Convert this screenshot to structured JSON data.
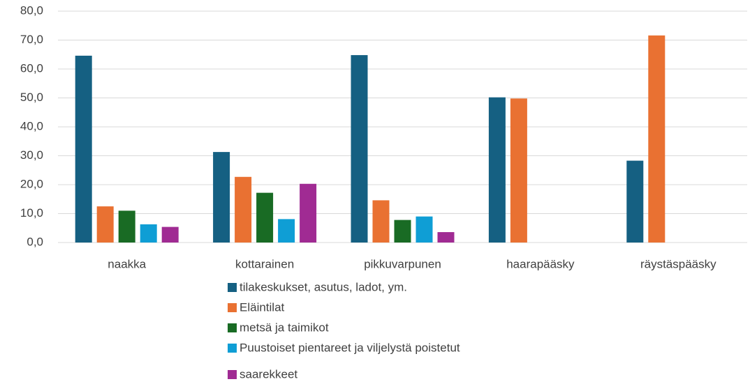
{
  "chart_data": {
    "type": "bar",
    "categories": [
      "naakka",
      "kottarainen",
      "pikkuvarpunen",
      "haarapääsky",
      "räystäspääsky"
    ],
    "series": [
      {
        "name": "tilakeskukset, asutus, ladot, ym.",
        "color": "#156082",
        "values": [
          64.6,
          31.3,
          64.8,
          50.2,
          28.3
        ]
      },
      {
        "name": "Eläintilat",
        "color": "#e97132",
        "values": [
          12.5,
          22.7,
          14.6,
          49.8,
          71.6
        ]
      },
      {
        "name": "metsä ja taimikot",
        "color": "#196b24",
        "values": [
          11.0,
          17.2,
          7.8,
          null,
          null
        ]
      },
      {
        "name": "Puustoiset pientareet ja viljelystä poistetut",
        "color": "#0f9ed5",
        "values": [
          6.3,
          8.1,
          9.0,
          null,
          null
        ]
      },
      {
        "name": "saarekkeet",
        "color": "#a02b93",
        "values": [
          5.4,
          20.3,
          3.6,
          null,
          null
        ]
      }
    ],
    "ylim": [
      0,
      80
    ],
    "yticks": [
      {
        "value": 0,
        "label": "0,0"
      },
      {
        "value": 10,
        "label": "10,0"
      },
      {
        "value": 20,
        "label": "20,0"
      },
      {
        "value": 30,
        "label": "30,0"
      },
      {
        "value": 40,
        "label": "40,0"
      },
      {
        "value": 50,
        "label": "50,0"
      },
      {
        "value": 60,
        "label": "60,0"
      },
      {
        "value": 70,
        "label": "70,0"
      },
      {
        "value": 80,
        "label": "80,0"
      }
    ],
    "grid": true,
    "legend": "bottom"
  }
}
